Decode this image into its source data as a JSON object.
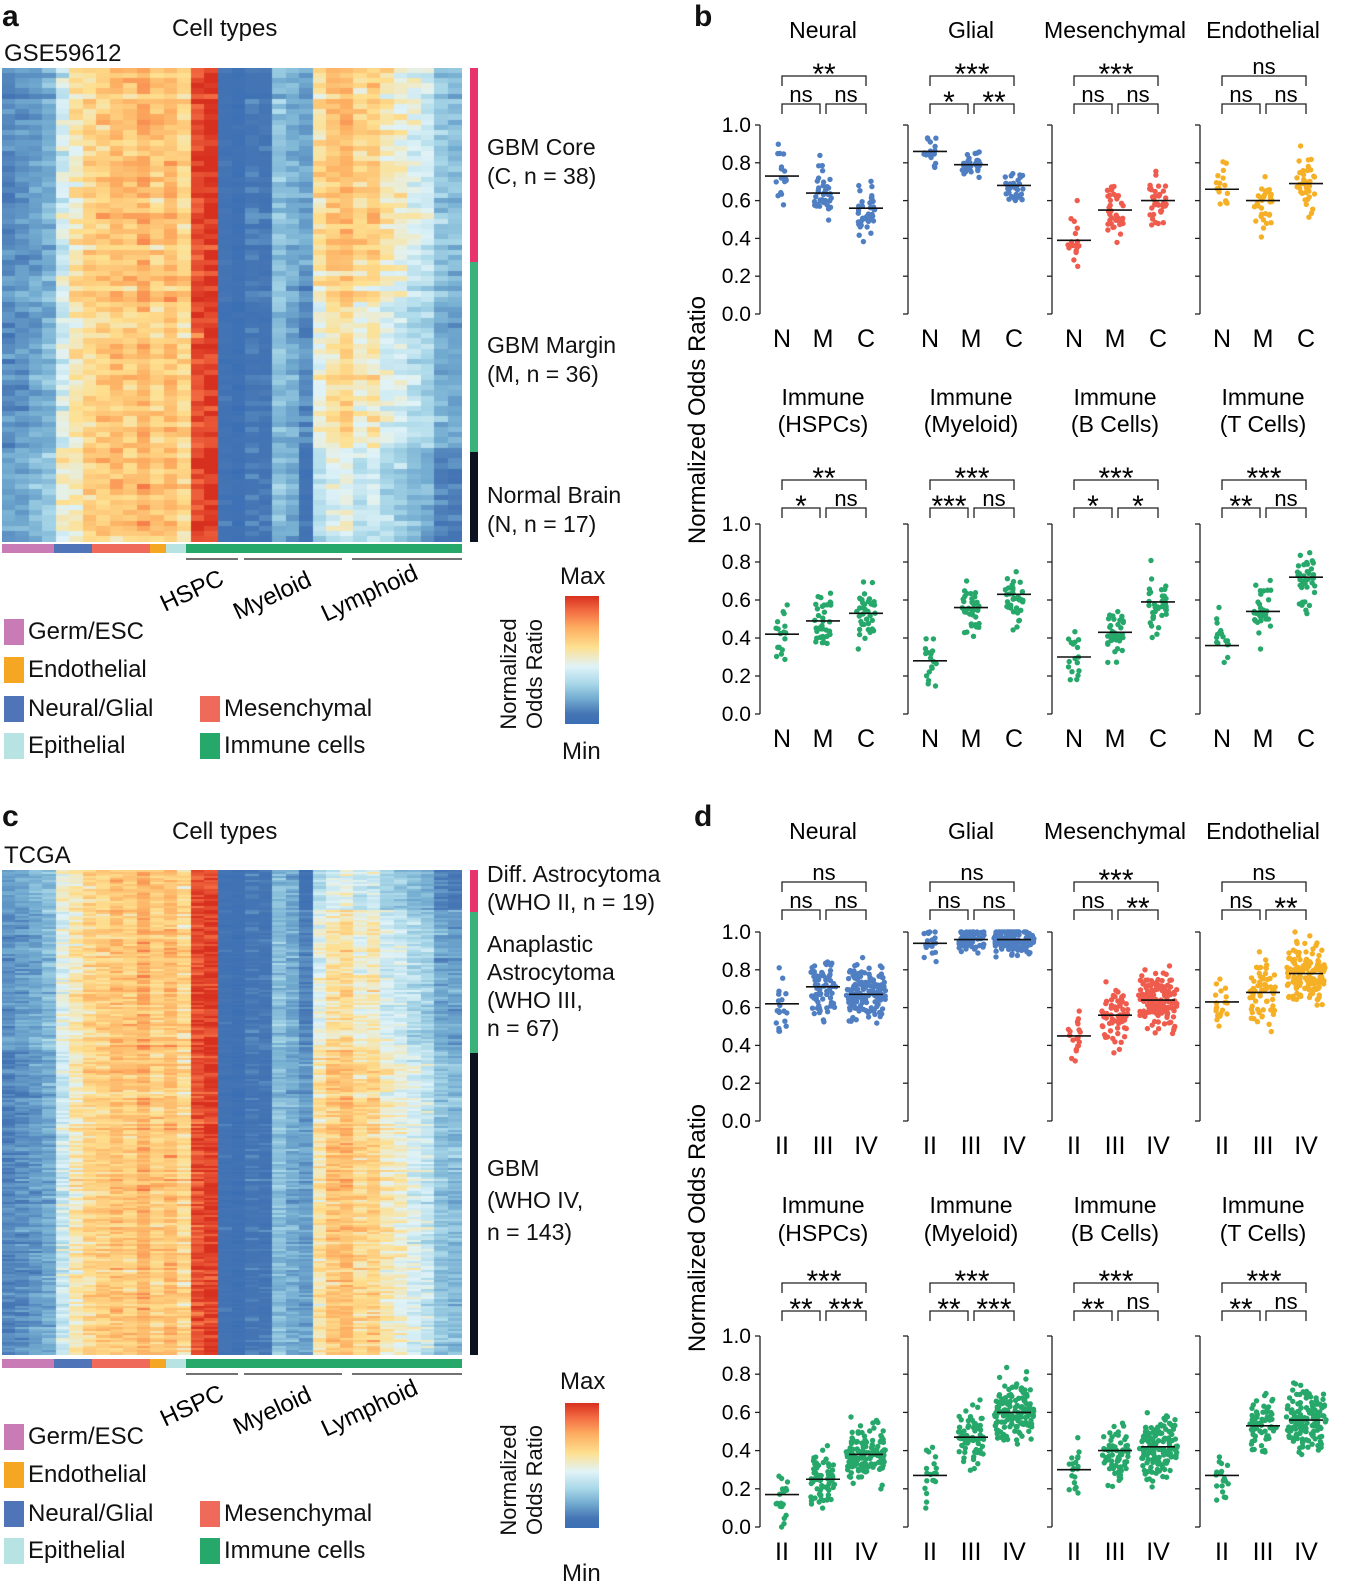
{
  "panels": {
    "a": {
      "letter": "a",
      "dataset": "GSE59612",
      "heading": "Cell types"
    },
    "b": {
      "letter": "b"
    },
    "c": {
      "letter": "c",
      "dataset": "TCGA",
      "heading": "Cell types"
    },
    "d": {
      "letter": "d"
    }
  },
  "heatmap_a": {
    "groups": [
      {
        "line1": "GBM Core",
        "line2": "(C, n = 38)",
        "color": "#e8336d"
      },
      {
        "line1": "GBM Margin",
        "line2": "(M, n = 36)",
        "color": "#3ab27a"
      },
      {
        "line1": "Normal Brain",
        "line2": "(N, n = 17)",
        "color": "#0b1220"
      }
    ],
    "subgroups": [
      "HSPC",
      "Myeloid",
      "Lymphoid"
    ]
  },
  "heatmap_c": {
    "groups": [
      {
        "lines": [
          "Diff. Astrocytoma",
          "(WHO II, n = 19)"
        ],
        "color": "#e8336d"
      },
      {
        "lines": [
          "Anaplastic",
          "Astrocytoma",
          "(WHO III,",
          "n = 67)"
        ],
        "color": "#3ab27a"
      },
      {
        "lines": [
          "GBM",
          "(WHO IV,",
          "n = 143)"
        ],
        "color": "#0b1220"
      }
    ],
    "subgroups": [
      "HSPC",
      "Myeloid",
      "Lymphoid"
    ]
  },
  "legend": {
    "items": [
      {
        "label": "Germ/ESC",
        "color": "#c87bb5"
      },
      {
        "label": "Endothelial",
        "color": "#f5a623"
      },
      {
        "label": "Neural/Glial",
        "color": "#4f74b8"
      },
      {
        "label": "Mesenchymal",
        "color": "#ef6a5a"
      },
      {
        "label": "Epithelial",
        "color": "#b7e3e3"
      },
      {
        "label": "Immune cells",
        "color": "#27a86b"
      }
    ],
    "colorbar": {
      "max": "Max",
      "min": "Min",
      "title1": "Normalized",
      "title2": "Odds Ratio"
    }
  },
  "colors": {
    "neural": "#4f7fc2",
    "mesenchymal": "#ef5c4d",
    "endothelial": "#f6b026",
    "immune": "#27a86b"
  },
  "chart_data": [
    {
      "type": "scatter",
      "panel": "b",
      "ylabel": "Normalized Odds Ratio",
      "ylim": [
        0,
        1
      ],
      "yticks": [
        "0.0",
        "0.2",
        "0.4",
        "0.6",
        "0.8",
        "1.0"
      ],
      "categories": [
        "N",
        "M",
        "C"
      ],
      "subplots": [
        {
          "title": [
            "Neural"
          ],
          "color": "neural",
          "medians": [
            0.73,
            0.64,
            0.56
          ],
          "sig": [
            "ns",
            "ns",
            "**"
          ]
        },
        {
          "title": [
            "Glial"
          ],
          "color": "neural",
          "medians": [
            0.86,
            0.79,
            0.68
          ],
          "sig": [
            "*",
            "**",
            "***"
          ]
        },
        {
          "title": [
            "Mesenchymal"
          ],
          "color": "mesenchymal",
          "medians": [
            0.39,
            0.55,
            0.6
          ],
          "sig": [
            "ns",
            "ns",
            "***"
          ]
        },
        {
          "title": [
            "Endothelial"
          ],
          "color": "endothelial",
          "medians": [
            0.66,
            0.6,
            0.69
          ],
          "sig": [
            "ns",
            "ns",
            "ns"
          ]
        },
        {
          "title": [
            "Immune",
            "(HSPCs)"
          ],
          "color": "immune",
          "medians": [
            0.42,
            0.49,
            0.53
          ],
          "sig": [
            "*",
            "ns",
            "**"
          ]
        },
        {
          "title": [
            "Immune",
            "(Myeloid)"
          ],
          "color": "immune",
          "medians": [
            0.28,
            0.56,
            0.63
          ],
          "sig": [
            "***",
            "ns",
            "***"
          ]
        },
        {
          "title": [
            "Immune",
            "(B Cells)"
          ],
          "color": "immune",
          "medians": [
            0.3,
            0.43,
            0.59
          ],
          "sig": [
            "*",
            "*",
            "***"
          ]
        },
        {
          "title": [
            "Immune",
            "(T Cells)"
          ],
          "color": "immune",
          "medians": [
            0.36,
            0.54,
            0.72
          ],
          "sig": [
            "**",
            "ns",
            "***"
          ]
        }
      ]
    },
    {
      "type": "scatter",
      "panel": "d",
      "ylabel": "Normalized Odds Ratio",
      "ylim": [
        0,
        1
      ],
      "yticks": [
        "0.0",
        "0.2",
        "0.4",
        "0.6",
        "0.8",
        "1.0"
      ],
      "categories": [
        "II",
        "III",
        "IV"
      ],
      "subplots": [
        {
          "title": [
            "Neural"
          ],
          "color": "neural",
          "medians": [
            0.62,
            0.71,
            0.67
          ],
          "sig": [
            "ns",
            "ns",
            "ns"
          ]
        },
        {
          "title": [
            "Glial"
          ],
          "color": "neural",
          "medians": [
            0.94,
            0.96,
            0.96
          ],
          "sig": [
            "ns",
            "ns",
            "ns"
          ]
        },
        {
          "title": [
            "Mesenchymal"
          ],
          "color": "mesenchymal",
          "medians": [
            0.45,
            0.56,
            0.64
          ],
          "sig": [
            "ns",
            "**",
            "***"
          ]
        },
        {
          "title": [
            "Endothelial"
          ],
          "color": "endothelial",
          "medians": [
            0.63,
            0.68,
            0.78
          ],
          "sig": [
            "ns",
            "**",
            "ns"
          ]
        },
        {
          "title": [
            "Immune",
            "(HSPCs)"
          ],
          "color": "immune",
          "medians": [
            0.17,
            0.25,
            0.38
          ],
          "sig": [
            "**",
            "***",
            "***"
          ]
        },
        {
          "title": [
            "Immune",
            "(Myeloid)"
          ],
          "color": "immune",
          "medians": [
            0.27,
            0.47,
            0.6
          ],
          "sig": [
            "**",
            "***",
            "***"
          ]
        },
        {
          "title": [
            "Immune",
            "(B Cells)"
          ],
          "color": "immune",
          "medians": [
            0.3,
            0.4,
            0.42
          ],
          "sig": [
            "**",
            "ns",
            "***"
          ]
        },
        {
          "title": [
            "Immune",
            "(T Cells)"
          ],
          "color": "immune",
          "medians": [
            0.27,
            0.53,
            0.56
          ],
          "sig": [
            "**",
            "ns",
            "***"
          ]
        }
      ]
    }
  ]
}
